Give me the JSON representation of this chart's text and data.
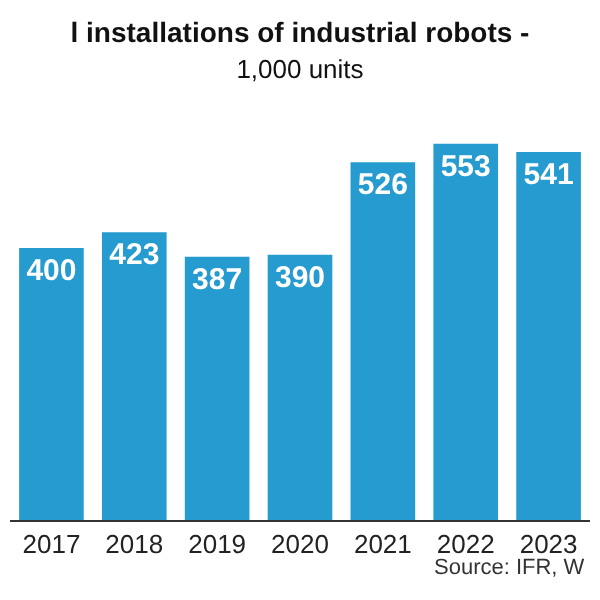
{
  "chart_data": {
    "type": "bar",
    "title": "l installations of industrial robots -",
    "subtitle": "1,000 units",
    "categories": [
      "2017",
      "2018",
      "2019",
      "2020",
      "2021",
      "2022",
      "2023"
    ],
    "values": [
      400,
      423,
      387,
      390,
      526,
      553,
      541
    ],
    "color": "#259bd0",
    "data_labels": true,
    "annotations": [
      "Source: IFR, W"
    ]
  }
}
